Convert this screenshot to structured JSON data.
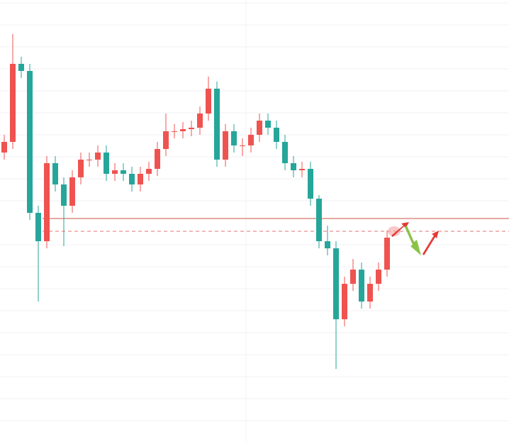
{
  "chart_data": {
    "type": "candlestick",
    "open": [
      40.8,
      42.3,
      53.3,
      52.3,
      32.3,
      28.3,
      39.3,
      36.3,
      33.3,
      37.3,
      39.8,
      39.8,
      40.8,
      37.8,
      38.3,
      37.8,
      36.3,
      37.8,
      38.5,
      41.3,
      43.8,
      43.8,
      44.1,
      44.3,
      46.3,
      49.8,
      39.8,
      43.8,
      41.8,
      41.8,
      43.3,
      45.3,
      44.3,
      42.3,
      39.3,
      38.3,
      38.5,
      34.3,
      28.3,
      27.3,
      17.3,
      22.3,
      24.3,
      19.8,
      22.3,
      24.3
    ],
    "high": [
      43.3,
      57.5,
      54.3,
      53.3,
      33.3,
      40.3,
      40.3,
      37.3,
      38.3,
      40.8,
      40.8,
      41.8,
      41.8,
      39.3,
      39.3,
      38.8,
      38.8,
      39.5,
      42.3,
      46.3,
      44.8,
      45.1,
      45.3,
      47.3,
      51.5,
      50.8,
      44.8,
      44.8,
      42.8,
      44.3,
      46.3,
      46.3,
      45.3,
      43.3,
      40.3,
      39.5,
      39.5,
      34.8,
      30.5,
      28.3,
      23.3,
      25.8,
      25.3,
      23.3,
      25.3,
      29.8
    ],
    "low": [
      39.8,
      41.3,
      51.3,
      31.3,
      19.8,
      27.3,
      35.3,
      27.6,
      32.3,
      36.3,
      38.8,
      38.8,
      36.8,
      36.8,
      36.8,
      35.3,
      35.3,
      36.8,
      37.5,
      40.3,
      42.8,
      42.8,
      43.1,
      43.3,
      45.3,
      38.8,
      38.8,
      40.8,
      40.3,
      40.8,
      42.3,
      43.3,
      41.3,
      38.3,
      37.3,
      37.3,
      33.3,
      27.3,
      26.3,
      10.3,
      16.3,
      21.3,
      18.8,
      18.8,
      21.3,
      23.3
    ],
    "close": [
      42.3,
      53.3,
      52.3,
      32.3,
      28.3,
      39.3,
      36.3,
      33.3,
      37.3,
      39.8,
      39.8,
      40.8,
      37.8,
      38.3,
      37.8,
      36.3,
      37.8,
      38.5,
      41.3,
      43.8,
      43.8,
      44.1,
      44.3,
      46.3,
      49.8,
      39.8,
      43.8,
      41.8,
      41.8,
      43.3,
      45.3,
      44.3,
      42.3,
      39.3,
      38.3,
      38.5,
      34.3,
      28.3,
      27.3,
      17.3,
      22.3,
      24.3,
      19.8,
      22.3,
      24.3,
      28.8
    ],
    "up_color": "#ef5350",
    "down_color": "#26a69a",
    "ylim": [
      0,
      62.3
    ],
    "levels": [
      {
        "value": 31.5,
        "style": "solid",
        "color": "#c9553f"
      },
      {
        "value": 29.7,
        "style": "dashed",
        "color": "#e57373"
      }
    ]
  }
}
